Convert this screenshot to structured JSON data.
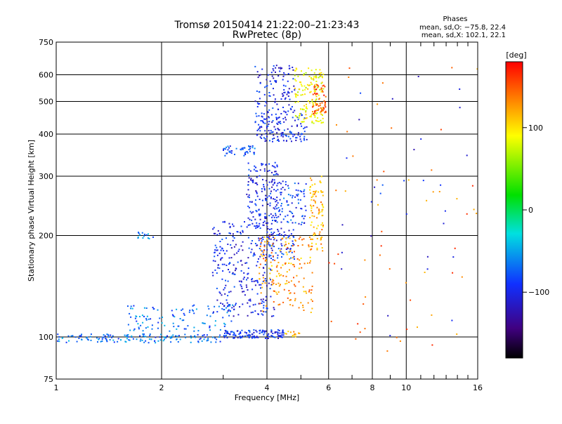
{
  "chart_data": {
    "type": "scatter",
    "title": "Tromsø 20150414 21:22:00–21:23:43",
    "subtitle": "RwPretec (8p)",
    "phase_box": {
      "heading": "Phases",
      "line1": "mean, sd,O: −75.8, 22.4",
      "line2": "mean, sd,X: 102.1, 22.1"
    },
    "xlabel": "Frequency [MHz]",
    "ylabel": "Stationary phase Virtual Height [km]",
    "x_scale": "log",
    "y_scale": "log",
    "xlim": [
      1,
      16
    ],
    "ylim": [
      75,
      750
    ],
    "x_ticks": [
      {
        "v": 1,
        "label": "1"
      },
      {
        "v": 2,
        "label": "2"
      },
      {
        "v": 4,
        "label": "4"
      },
      {
        "v": 6,
        "label": "6"
      },
      {
        "v": 8,
        "label": "8"
      },
      {
        "v": 10,
        "label": "10"
      },
      {
        "v": 16,
        "label": "16"
      }
    ],
    "y_ticks": [
      {
        "v": 75,
        "label": "75"
      },
      {
        "v": 100,
        "label": "100"
      },
      {
        "v": 200,
        "label": "200"
      },
      {
        "v": 300,
        "label": "300"
      },
      {
        "v": 400,
        "label": "400"
      },
      {
        "v": 500,
        "label": "500"
      },
      {
        "v": 600,
        "label": "600"
      },
      {
        "v": 750,
        "label": "750"
      }
    ],
    "grid": true,
    "colorbar": {
      "label": "[deg]",
      "range": [
        -180,
        180
      ],
      "ticks": [
        {
          "v": 100,
          "label": "100"
        },
        {
          "v": 0,
          "label": "0"
        },
        {
          "v": -100,
          "label": "−100"
        }
      ],
      "colors": {
        "top": "#ff0000",
        "yellow": "#ffff00",
        "green": "#00e000",
        "cyan": "#00e0e0",
        "blue": "#1030ff",
        "violet": "#400080",
        "bottom": "#000000"
      }
    },
    "clusters": [
      {
        "x": [
          1.0,
          3.0
        ],
        "y": [
          96,
          102
        ],
        "phase": -70,
        "count": 150
      },
      {
        "x": [
          3.0,
          4.5
        ],
        "y": [
          99,
          105
        ],
        "phase": -95,
        "count": 130
      },
      {
        "x": [
          4.5,
          5.0
        ],
        "y": [
          100,
          104
        ],
        "phase": 120,
        "count": 15
      },
      {
        "x": [
          1.6,
          3.2
        ],
        "y": [
          104,
          125
        ],
        "phase": -68,
        "count": 110
      },
      {
        "x": [
          1.7,
          1.9
        ],
        "y": [
          195,
          210
        ],
        "phase": -65,
        "count": 14
      },
      {
        "x": [
          2.8,
          4.2
        ],
        "y": [
          115,
          220
        ],
        "phase": -100,
        "count": 280
      },
      {
        "x": [
          4.0,
          4.8
        ],
        "y": [
          170,
          210
        ],
        "phase": -95,
        "count": 70
      },
      {
        "x": [
          3.8,
          5.4
        ],
        "y": [
          118,
          200
        ],
        "phase": 125,
        "count": 170
      },
      {
        "x": [
          5.3,
          5.8
        ],
        "y": [
          180,
          300
        ],
        "phase": 120,
        "count": 90
      },
      {
        "x": [
          3.5,
          4.3
        ],
        "y": [
          210,
          330
        ],
        "phase": -100,
        "count": 160
      },
      {
        "x": [
          4.2,
          5.2
        ],
        "y": [
          215,
          290
        ],
        "phase": -85,
        "count": 90
      },
      {
        "x": [
          3.0,
          3.7
        ],
        "y": [
          345,
          370
        ],
        "phase": -80,
        "count": 45
      },
      {
        "x": [
          3.7,
          5.2
        ],
        "y": [
          380,
          460
        ],
        "phase": -95,
        "count": 140
      },
      {
        "x": [
          3.7,
          4.8
        ],
        "y": [
          460,
          640
        ],
        "phase": -100,
        "count": 110
      },
      {
        "x": [
          4.8,
          5.8
        ],
        "y": [
          430,
          630
        ],
        "phase": 90,
        "count": 150
      },
      {
        "x": [
          5.4,
          5.9
        ],
        "y": [
          460,
          560
        ],
        "phase": 150,
        "count": 60
      },
      {
        "x": [
          6.0,
          16.0
        ],
        "y": [
          90,
          650
        ],
        "phase": 140,
        "count": 55
      },
      {
        "x": [
          6.5,
          16.0
        ],
        "y": [
          100,
          600
        ],
        "phase": -100,
        "count": 30
      }
    ]
  }
}
